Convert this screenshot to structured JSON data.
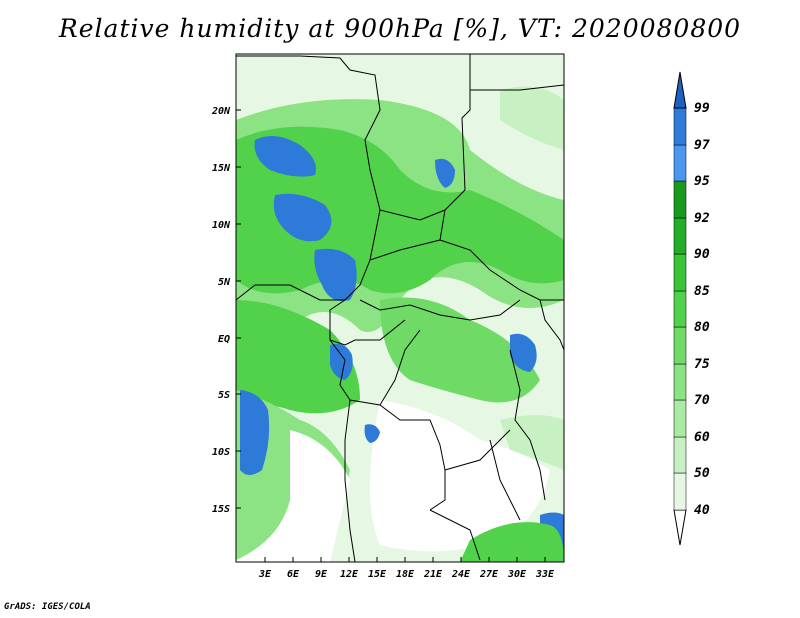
{
  "title": "Relative humidity at 900hPa [%], VT: 2020080800",
  "credit": "GrADS: IGES/COLA",
  "map": {
    "lat_labels": [
      "20N",
      "15N",
      "10N",
      "5N",
      "EQ",
      "5S",
      "10S",
      "15S"
    ],
    "lon_labels": [
      "3E",
      "6E",
      "9E",
      "12E",
      "15E",
      "18E",
      "21E",
      "24E",
      "27E",
      "30E",
      "33E"
    ]
  },
  "colorbar": {
    "levels": [
      "40",
      "50",
      "60",
      "70",
      "75",
      "80",
      "85",
      "90",
      "92",
      "95",
      "97",
      "99"
    ],
    "colors": [
      "#ffffff",
      "#e6f8e4",
      "#c7f1c2",
      "#a9eba2",
      "#8ce384",
      "#6fda66",
      "#52d14b",
      "#3ac436",
      "#23ae26",
      "#1a9a1c",
      "#4a98f0",
      "#2e7ad9",
      "#1e5fc4"
    ]
  }
}
